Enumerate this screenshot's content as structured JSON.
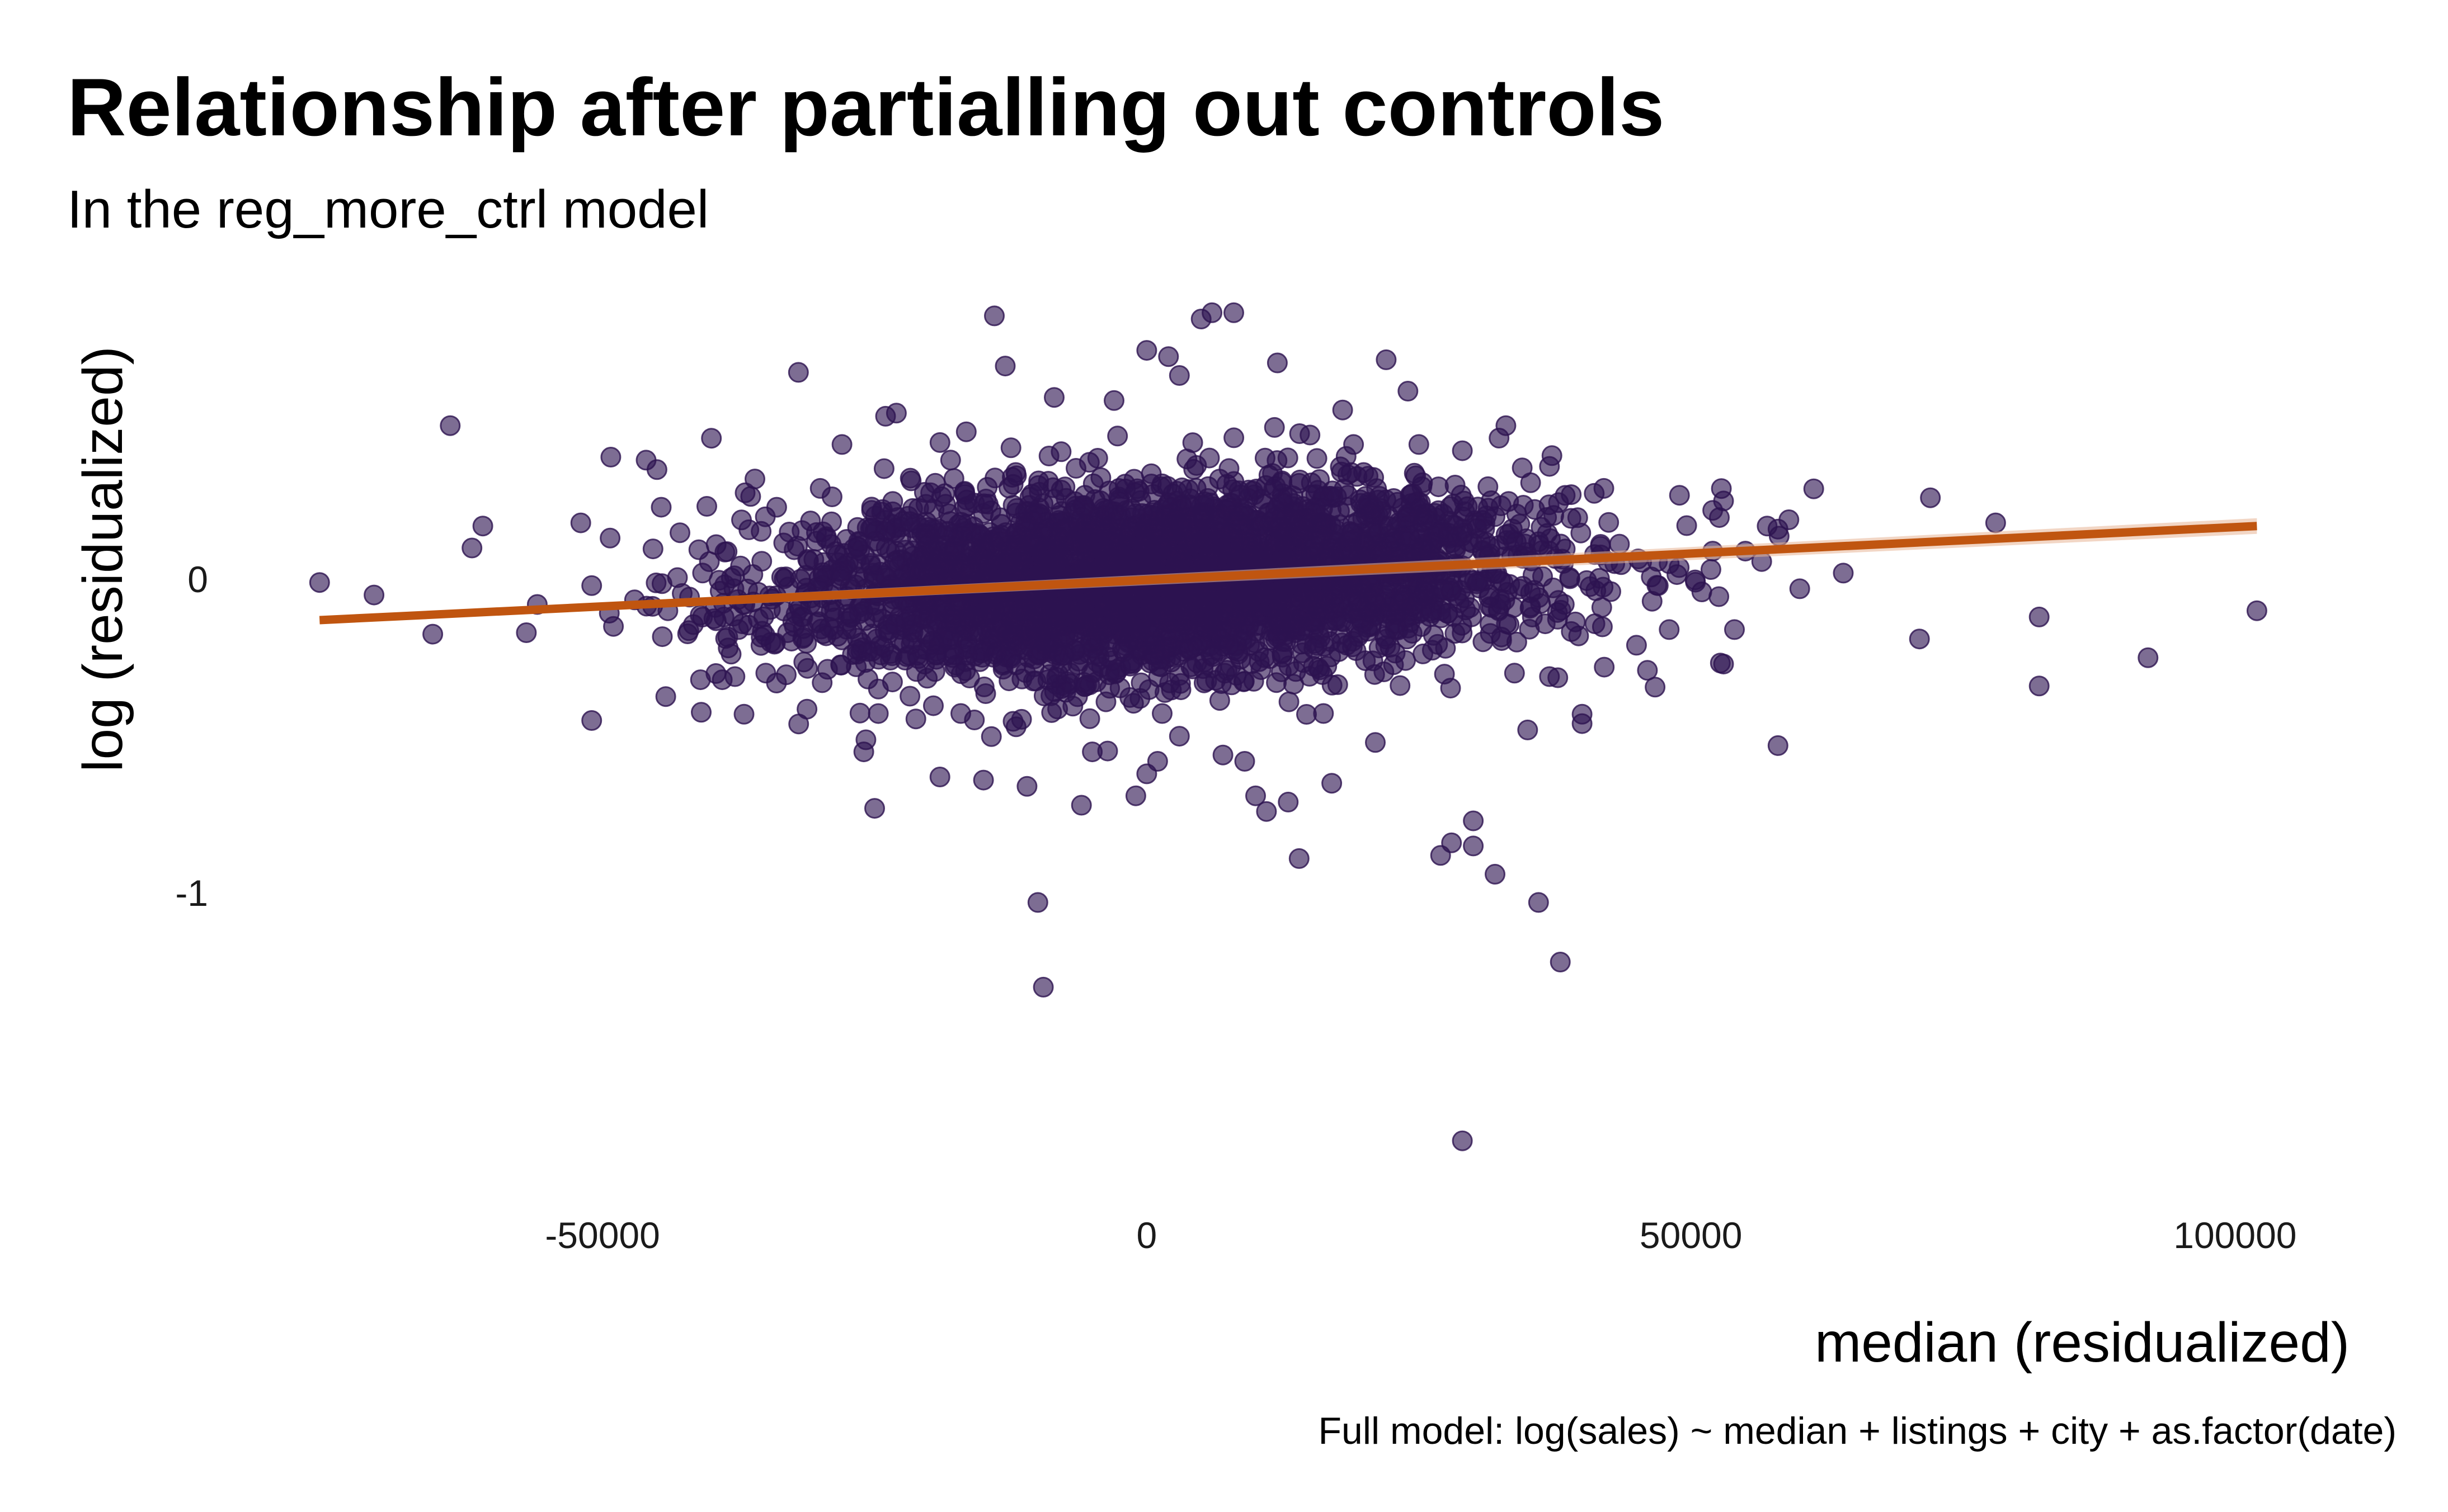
{
  "title": "Relationship after partialling out controls",
  "subtitle": "In the reg_more_ctrl model",
  "caption": "Full model: log(sales) ~ median + listings + city + as.factor(date)",
  "colors": {
    "points": "#2d1350",
    "line": "#c05510",
    "band": "#e8b595"
  },
  "chart_data": {
    "type": "scatter",
    "xlabel": "median (residualized)",
    "ylabel": "log (residualized)",
    "xlim": [
      -92000,
      110000
    ],
    "ylim": [
      -1.95,
      0.92
    ],
    "x_ticks": [
      {
        "value": -50000,
        "label": "-50000"
      },
      {
        "value": 0,
        "label": "0"
      },
      {
        "value": 50000,
        "label": "50000"
      },
      {
        "value": 100000,
        "label": "100000"
      }
    ],
    "y_ticks": [
      {
        "value": 0,
        "label": "0"
      },
      {
        "value": -1,
        "label": "-1"
      }
    ],
    "grid": false,
    "fit_line": {
      "x": [
        -76000,
        102000
      ],
      "y": [
        -0.13,
        0.17
      ]
    },
    "outliers": [
      [
        -76000,
        -0.01
      ],
      [
        -71000,
        -0.05
      ],
      [
        -64000,
        0.49
      ],
      [
        -62000,
        0.1
      ],
      [
        -61000,
        0.17
      ],
      [
        -57000,
        -0.17
      ],
      [
        -56000,
        -0.08
      ],
      [
        -52000,
        0.18
      ],
      [
        -51000,
        -0.45
      ],
      [
        -51000,
        -0.02
      ],
      [
        -49000,
        -0.15
      ],
      [
        -46000,
        0.38
      ],
      [
        -45000,
        0.35
      ],
      [
        -44000,
        -0.1
      ],
      [
        -41000,
        -0.32
      ],
      [
        -40000,
        0.45
      ],
      [
        -39000,
        -0.32
      ],
      [
        -37000,
        -0.43
      ],
      [
        -36000,
        0.32
      ],
      [
        -34000,
        0.23
      ],
      [
        -33000,
        -0.17
      ],
      [
        -32000,
        0.66
      ],
      [
        -30000,
        0.29
      ],
      [
        -28000,
        0.43
      ],
      [
        -26000,
        -0.55
      ],
      [
        -25000,
        -0.73
      ],
      [
        -24000,
        0.52
      ],
      [
        -23000,
        0.53
      ],
      [
        -19000,
        -0.63
      ],
      [
        -17000,
        0.02
      ],
      [
        -15000,
        -0.64
      ],
      [
        -14000,
        0.84
      ],
      [
        -13000,
        0.68
      ],
      [
        -12000,
        -0.47
      ],
      [
        -11000,
        -0.66
      ],
      [
        -10000,
        -1.03
      ],
      [
        -9500,
        -1.3
      ],
      [
        -8500,
        0.58
      ],
      [
        -6000,
        -0.72
      ],
      [
        -5000,
        -0.55
      ],
      [
        -3000,
        0.57
      ],
      [
        -1000,
        -0.69
      ],
      [
        0,
        0.73
      ],
      [
        0,
        -0.62
      ],
      [
        1000,
        -0.58
      ],
      [
        2000,
        0.71
      ],
      [
        3000,
        0.65
      ],
      [
        3000,
        -0.5
      ],
      [
        5000,
        0.83
      ],
      [
        6000,
        0.85
      ],
      [
        7000,
        -0.56
      ],
      [
        8000,
        0.85
      ],
      [
        9000,
        -0.58
      ],
      [
        10000,
        -0.69
      ],
      [
        11000,
        -0.74
      ],
      [
        12000,
        0.69
      ],
      [
        13000,
        -0.71
      ],
      [
        14000,
        -0.89
      ],
      [
        15000,
        0.46
      ],
      [
        17000,
        -0.65
      ],
      [
        18000,
        0.54
      ],
      [
        19000,
        0.43
      ],
      [
        21000,
        -0.52
      ],
      [
        22000,
        0.7
      ],
      [
        24000,
        0.6
      ],
      [
        25000,
        0.43
      ],
      [
        27000,
        -0.88
      ],
      [
        28000,
        -0.84
      ],
      [
        29000,
        0.41
      ],
      [
        29000,
        -1.79
      ],
      [
        30000,
        -0.85
      ],
      [
        30000,
        -0.77
      ],
      [
        32000,
        0.2
      ],
      [
        32000,
        -0.94
      ],
      [
        33000,
        0.49
      ],
      [
        34000,
        -0.2
      ],
      [
        35000,
        -0.48
      ],
      [
        36000,
        -1.03
      ],
      [
        36000,
        0.12
      ],
      [
        37000,
        -0.31
      ],
      [
        37000,
        0.36
      ],
      [
        38000,
        -1.22
      ],
      [
        39000,
        0.27
      ],
      [
        40000,
        -0.43
      ],
      [
        40000,
        -0.46
      ],
      [
        42000,
        0.29
      ],
      [
        43000,
        0.05
      ],
      [
        45000,
        -0.21
      ],
      [
        46000,
        -0.29
      ],
      [
        47000,
        -0.02
      ],
      [
        48000,
        0.05
      ],
      [
        48000,
        -0.16
      ],
      [
        51000,
        -0.04
      ],
      [
        52000,
        0.09
      ],
      [
        52000,
        0.22
      ],
      [
        53000,
        -0.27
      ],
      [
        53000,
        0.25
      ],
      [
        54000,
        -0.16
      ],
      [
        55000,
        0.09
      ],
      [
        57000,
        0.17
      ],
      [
        58000,
        -0.53
      ],
      [
        58000,
        0.16
      ],
      [
        59000,
        0.19
      ],
      [
        60000,
        -0.03
      ],
      [
        64000,
        0.02
      ],
      [
        71000,
        -0.19
      ],
      [
        72000,
        0.26
      ],
      [
        78000,
        0.18
      ],
      [
        82000,
        -0.12
      ],
      [
        82000,
        -0.34
      ],
      [
        92000,
        -0.25
      ],
      [
        102000,
        -0.1
      ]
    ],
    "cluster": {
      "center": [
        1000,
        0.0
      ],
      "spread": [
        17000,
        0.15
      ],
      "count": 3800,
      "relationship_slope_per_unit": 1.7e-06
    }
  }
}
